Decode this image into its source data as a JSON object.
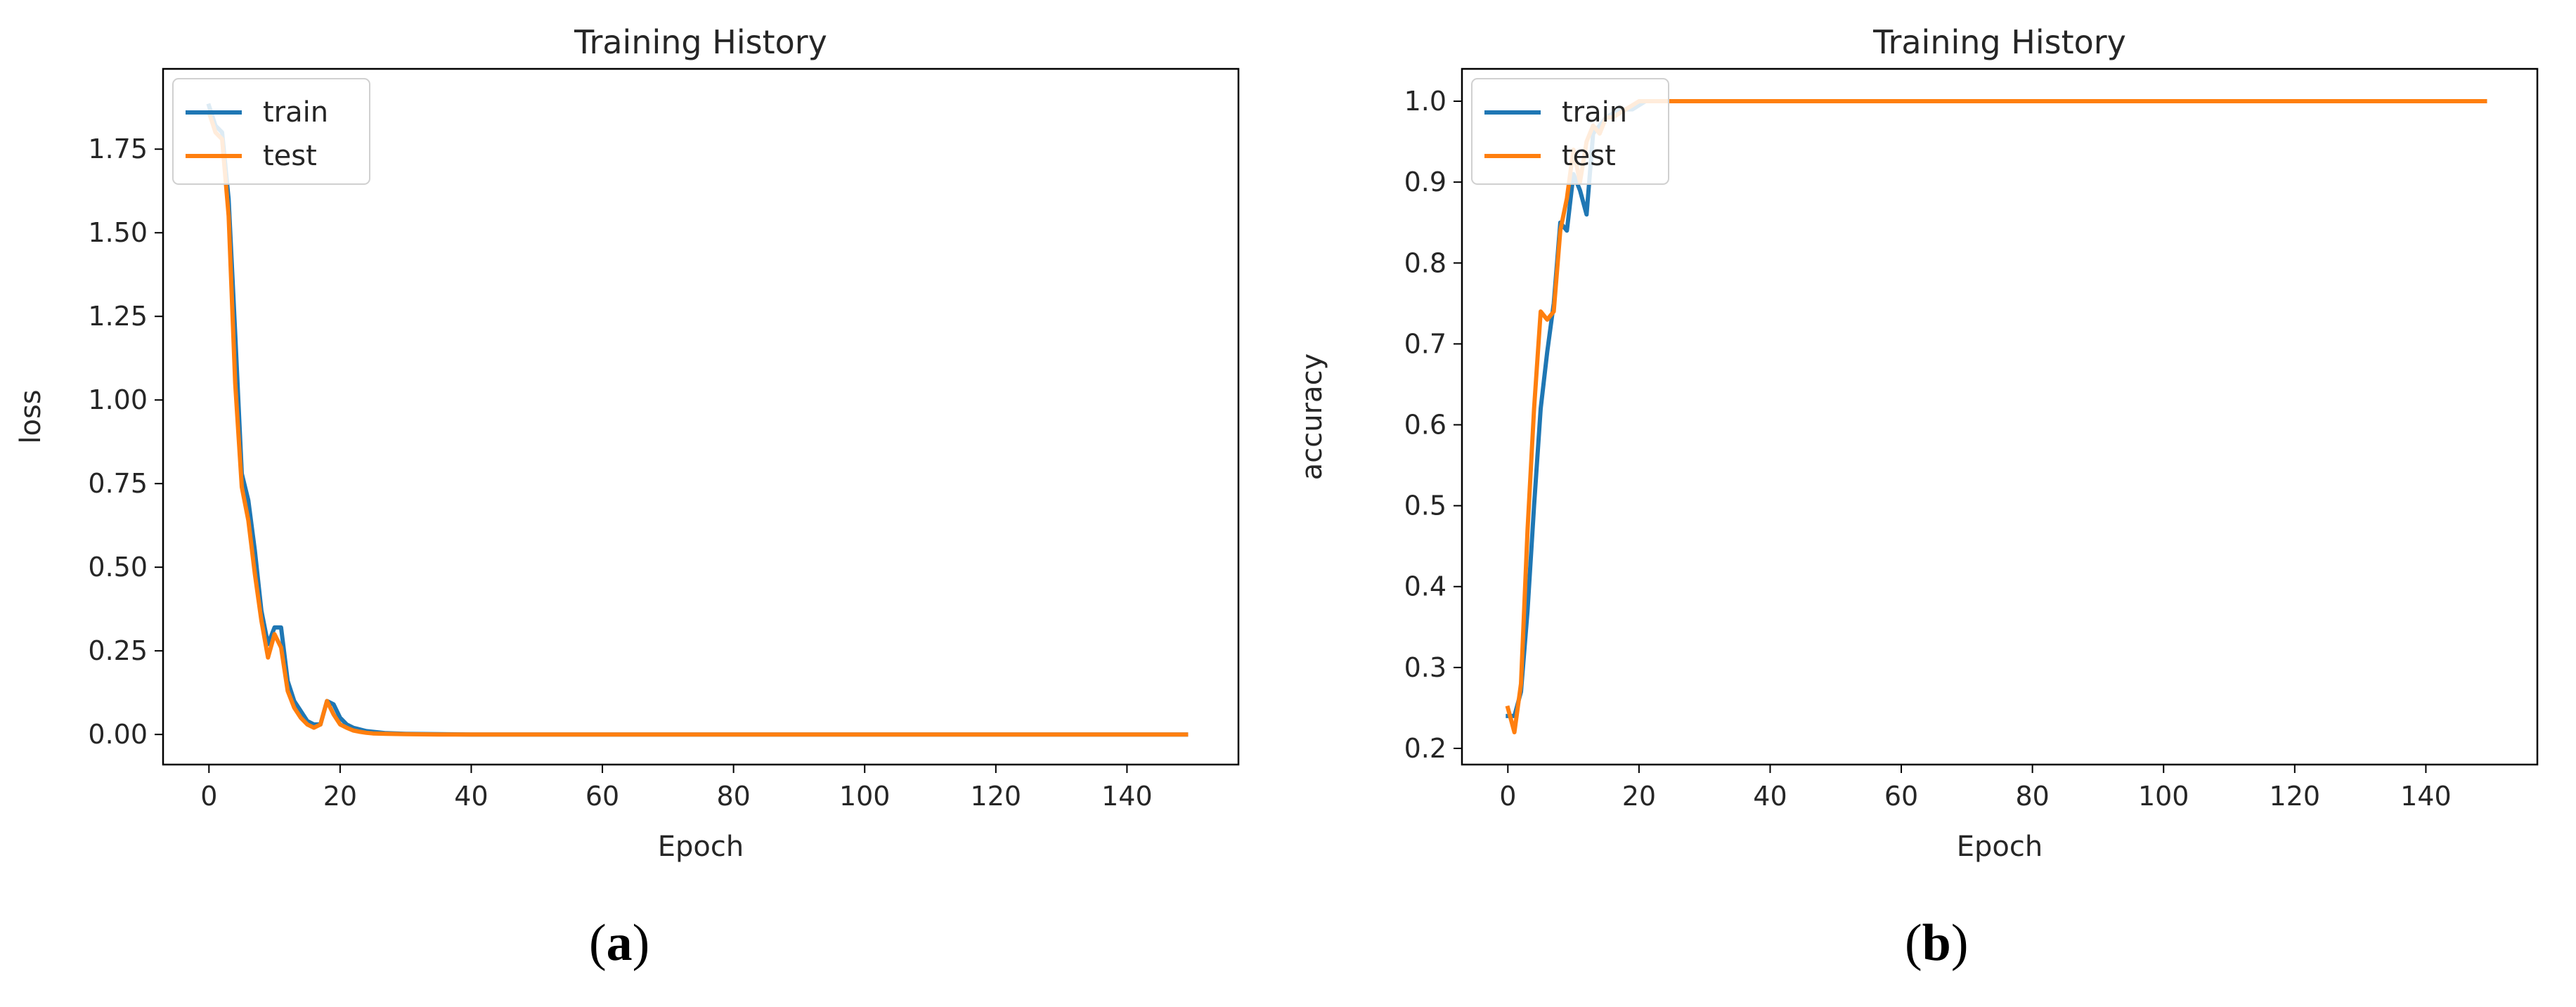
{
  "chart_data": [
    {
      "type": "line",
      "title": "Training History",
      "xlabel": "Epoch",
      "ylabel": "loss",
      "xlim": [
        -7,
        157
      ],
      "ylim": [
        -0.09,
        1.99
      ],
      "xticks": [
        0,
        20,
        40,
        60,
        80,
        100,
        120,
        140
      ],
      "yticks": [
        0.0,
        0.25,
        0.5,
        0.75,
        1.0,
        1.25,
        1.5,
        1.75
      ],
      "ytick_labels": [
        "0.00",
        "0.25",
        "0.50",
        "0.75",
        "1.00",
        "1.25",
        "1.50",
        "1.75"
      ],
      "legend": "upper left",
      "grid": false,
      "series": [
        {
          "name": "train",
          "color": "#1f77b4",
          "points": [
            [
              0,
              1.88
            ],
            [
              1,
              1.82
            ],
            [
              2,
              1.8
            ],
            [
              3,
              1.6
            ],
            [
              4,
              1.2
            ],
            [
              5,
              0.78
            ],
            [
              6,
              0.7
            ],
            [
              7,
              0.55
            ],
            [
              8,
              0.37
            ],
            [
              9,
              0.27
            ],
            [
              10,
              0.32
            ],
            [
              11,
              0.32
            ],
            [
              12,
              0.16
            ],
            [
              13,
              0.1
            ],
            [
              14,
              0.07
            ],
            [
              15,
              0.04
            ],
            [
              16,
              0.03
            ],
            [
              17,
              0.03
            ],
            [
              18,
              0.1
            ],
            [
              19,
              0.09
            ],
            [
              20,
              0.05
            ],
            [
              21,
              0.03
            ],
            [
              22,
              0.02
            ],
            [
              23,
              0.015
            ],
            [
              24,
              0.01
            ],
            [
              25,
              0.008
            ],
            [
              27,
              0.004
            ],
            [
              30,
              0.002
            ],
            [
              35,
              0.001
            ],
            [
              40,
              0.0
            ],
            [
              149,
              0.0
            ]
          ]
        },
        {
          "name": "test",
          "color": "#ff7f0e",
          "points": [
            [
              0,
              1.86
            ],
            [
              1,
              1.8
            ],
            [
              2,
              1.78
            ],
            [
              3,
              1.55
            ],
            [
              4,
              1.05
            ],
            [
              5,
              0.74
            ],
            [
              6,
              0.64
            ],
            [
              7,
              0.48
            ],
            [
              8,
              0.34
            ],
            [
              9,
              0.23
            ],
            [
              10,
              0.3
            ],
            [
              11,
              0.26
            ],
            [
              12,
              0.13
            ],
            [
              13,
              0.08
            ],
            [
              14,
              0.05
            ],
            [
              15,
              0.03
            ],
            [
              16,
              0.02
            ],
            [
              17,
              0.03
            ],
            [
              18,
              0.1
            ],
            [
              19,
              0.06
            ],
            [
              20,
              0.03
            ],
            [
              21,
              0.02
            ],
            [
              22,
              0.012
            ],
            [
              23,
              0.008
            ],
            [
              24,
              0.005
            ],
            [
              25,
              0.003
            ],
            [
              27,
              0.002
            ],
            [
              30,
              0.001
            ],
            [
              35,
              0.0
            ],
            [
              149,
              0.0
            ]
          ]
        }
      ]
    },
    {
      "type": "line",
      "title": "Training History",
      "xlabel": "Epoch",
      "ylabel": "accuracy",
      "xlim": [
        -7,
        157
      ],
      "ylim": [
        0.18,
        1.04
      ],
      "xticks": [
        0,
        20,
        40,
        60,
        80,
        100,
        120,
        140
      ],
      "yticks": [
        0.2,
        0.3,
        0.4,
        0.5,
        0.6,
        0.7,
        0.8,
        0.9,
        1.0
      ],
      "ytick_labels": [
        "0.2",
        "0.3",
        "0.4",
        "0.5",
        "0.6",
        "0.7",
        "0.8",
        "0.9",
        "1.0"
      ],
      "legend": "upper left",
      "grid": false,
      "series": [
        {
          "name": "train",
          "color": "#1f77b4",
          "points": [
            [
              0,
              0.24
            ],
            [
              1,
              0.24
            ],
            [
              2,
              0.27
            ],
            [
              3,
              0.37
            ],
            [
              4,
              0.5
            ],
            [
              5,
              0.62
            ],
            [
              6,
              0.69
            ],
            [
              7,
              0.75
            ],
            [
              8,
              0.85
            ],
            [
              9,
              0.84
            ],
            [
              10,
              0.91
            ],
            [
              11,
              0.89
            ],
            [
              12,
              0.86
            ],
            [
              13,
              0.96
            ],
            [
              14,
              0.97
            ],
            [
              15,
              0.98
            ],
            [
              17,
              0.99
            ],
            [
              19,
              0.99
            ],
            [
              21,
              1.0
            ],
            [
              23,
              1.0
            ],
            [
              25,
              1.0
            ],
            [
              149,
              1.0
            ]
          ]
        },
        {
          "name": "test",
          "color": "#ff7f0e",
          "points": [
            [
              0,
              0.25
            ],
            [
              1,
              0.22
            ],
            [
              2,
              0.28
            ],
            [
              3,
              0.47
            ],
            [
              4,
              0.62
            ],
            [
              5,
              0.74
            ],
            [
              6,
              0.73
            ],
            [
              7,
              0.74
            ],
            [
              8,
              0.84
            ],
            [
              9,
              0.88
            ],
            [
              10,
              0.94
            ],
            [
              11,
              0.9
            ],
            [
              12,
              0.95
            ],
            [
              13,
              0.97
            ],
            [
              14,
              0.96
            ],
            [
              15,
              0.98
            ],
            [
              16,
              0.98
            ],
            [
              18,
              0.99
            ],
            [
              20,
              1.0
            ],
            [
              22,
              1.0
            ],
            [
              25,
              1.0
            ],
            [
              149,
              1.0
            ]
          ]
        }
      ]
    }
  ],
  "captions": [
    {
      "open": "(",
      "letter": "a",
      "close": ")"
    },
    {
      "open": "(",
      "letter": "b",
      "close": ")"
    }
  ]
}
